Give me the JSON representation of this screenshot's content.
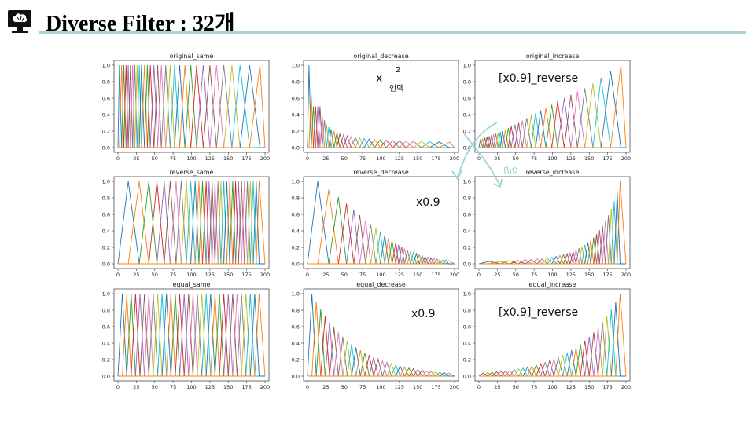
{
  "slide": {
    "title": "Diverse Filter : 32개",
    "logo_icon": "brain-monitor-icon",
    "rule_color": "#a9d3d6"
  },
  "annotations": {
    "orig_dec_x": "x",
    "orig_dec_frac_num": "2",
    "orig_dec_frac_den": "인덱",
    "orig_inc": "[x0.9]_reverse",
    "rev_dec": "x0.9",
    "eq_dec": "x0.9",
    "eq_inc": "[x0.9]_reverse",
    "flip": "flip",
    "ink_color": "#111111",
    "arrow_color": "#9fd3d6"
  },
  "chart_data": {
    "type": "line",
    "layout": "3x3 grid",
    "n_filters": 32,
    "palette": [
      "#1f77b4",
      "#ff7f0e",
      "#2ca02c",
      "#d62728",
      "#9467bd",
      "#8c564b",
      "#e377c2",
      "#7f7f7f",
      "#bcbd22",
      "#17becf"
    ],
    "xlim": [
      0,
      200
    ],
    "ylim": [
      0,
      1
    ],
    "xticks": [
      "0",
      "25",
      "50",
      "75",
      "100",
      "125",
      "150",
      "175",
      "200"
    ],
    "yticks": [
      "0.0",
      "0.2",
      "0.4",
      "0.6",
      "0.8",
      "1.0"
    ],
    "panels": [
      {
        "title": "original_same",
        "centers": [
          2,
          5,
          8,
          11,
          14,
          17,
          20,
          23,
          26,
          29,
          32,
          36,
          40,
          44,
          49,
          54,
          59,
          65,
          71,
          77,
          84,
          91,
          99,
          107,
          116,
          125,
          134,
          144,
          155,
          166,
          179,
          193
        ],
        "width": "log-spaced, narrow to wide",
        "peaks": "all 1.0"
      },
      {
        "title": "original_decrease",
        "centers": [
          2,
          5,
          8,
          11,
          14,
          17,
          20,
          23,
          26,
          29,
          32,
          36,
          40,
          44,
          49,
          54,
          59,
          65,
          71,
          77,
          84,
          91,
          99,
          107,
          116,
          125,
          134,
          144,
          155,
          166,
          179,
          193
        ],
        "peaks": [
          1.0,
          0.667,
          0.5,
          0.5,
          0.5,
          0.5,
          0.4,
          0.333,
          0.286,
          0.25,
          0.222,
          0.2,
          0.182,
          0.167,
          0.154,
          0.143,
          0.133,
          0.125,
          0.118,
          0.111,
          0.105,
          0.1,
          0.095,
          0.091,
          0.087,
          0.083,
          0.08,
          0.077,
          0.074,
          0.071,
          0.069,
          0.067
        ]
      },
      {
        "title": "original_increase",
        "centers": [
          2,
          5,
          8,
          11,
          14,
          17,
          20,
          23,
          26,
          29,
          32,
          36,
          40,
          44,
          49,
          54,
          59,
          65,
          71,
          77,
          84,
          91,
          99,
          107,
          116,
          125,
          134,
          144,
          155,
          166,
          179,
          193
        ],
        "peaks": [
          0.1,
          0.11,
          0.12,
          0.13,
          0.14,
          0.15,
          0.16,
          0.17,
          0.18,
          0.19,
          0.2,
          0.22,
          0.24,
          0.26,
          0.28,
          0.3,
          0.33,
          0.36,
          0.39,
          0.42,
          0.45,
          0.48,
          0.52,
          0.56,
          0.6,
          0.64,
          0.68,
          0.72,
          0.78,
          0.85,
          0.93,
          1.0
        ]
      },
      {
        "title": "reverse_same",
        "centers": [
          14,
          29,
          42,
          53,
          63,
          71,
          79,
          86,
          93,
          99,
          105,
          110,
          115,
          120,
          124,
          128,
          132,
          136,
          140,
          144,
          148,
          152,
          156,
          160,
          164,
          168,
          172,
          176,
          180,
          184,
          188,
          192
        ],
        "width": "wide to narrow",
        "peaks": "all 1.0"
      },
      {
        "title": "reverse_decrease",
        "centers": [
          14,
          29,
          42,
          53,
          63,
          71,
          79,
          86,
          93,
          99,
          105,
          110,
          115,
          120,
          124,
          128,
          132,
          136,
          140,
          144,
          148,
          152,
          156,
          160,
          164,
          168,
          172,
          176,
          180,
          184,
          188,
          192
        ],
        "peaks": "1.0 times 0.9 per filter"
      },
      {
        "title": "reverse_increase",
        "centers": [
          14,
          29,
          42,
          53,
          63,
          71,
          79,
          86,
          93,
          99,
          105,
          110,
          115,
          120,
          124,
          128,
          132,
          136,
          140,
          144,
          148,
          152,
          156,
          160,
          164,
          168,
          172,
          176,
          180,
          184,
          188,
          192
        ],
        "peaks": [
          0.03,
          0.03,
          0.04,
          0.04,
          0.05,
          0.05,
          0.06,
          0.06,
          0.07,
          0.08,
          0.09,
          0.1,
          0.11,
          0.12,
          0.13,
          0.15,
          0.17,
          0.19,
          0.21,
          0.23,
          0.26,
          0.29,
          0.32,
          0.36,
          0.41,
          0.46,
          0.52,
          0.59,
          0.67,
          0.76,
          0.87,
          1.0
        ]
      },
      {
        "title": "equal_same",
        "centers": [
          6,
          12,
          18,
          24,
          30,
          36,
          42,
          48,
          54,
          60,
          66,
          72,
          78,
          84,
          90,
          96,
          102,
          108,
          114,
          120,
          126,
          132,
          138,
          144,
          150,
          156,
          162,
          168,
          174,
          180,
          186,
          192
        ],
        "width": "equal",
        "peaks": "all 1.0"
      },
      {
        "title": "equal_decrease",
        "centers": [
          6,
          12,
          18,
          24,
          30,
          36,
          42,
          48,
          54,
          60,
          66,
          72,
          78,
          84,
          90,
          96,
          102,
          108,
          114,
          120,
          126,
          132,
          138,
          144,
          150,
          156,
          162,
          168,
          174,
          180,
          186,
          192
        ],
        "peaks": "1.0 times 0.9 per filter"
      },
      {
        "title": "equal_increase",
        "centers": [
          6,
          12,
          18,
          24,
          30,
          36,
          42,
          48,
          54,
          60,
          66,
          72,
          78,
          84,
          90,
          96,
          102,
          108,
          114,
          120,
          126,
          132,
          138,
          144,
          150,
          156,
          162,
          168,
          174,
          180,
          186,
          192
        ],
        "peaks": "decrease peaks reversed"
      }
    ]
  }
}
